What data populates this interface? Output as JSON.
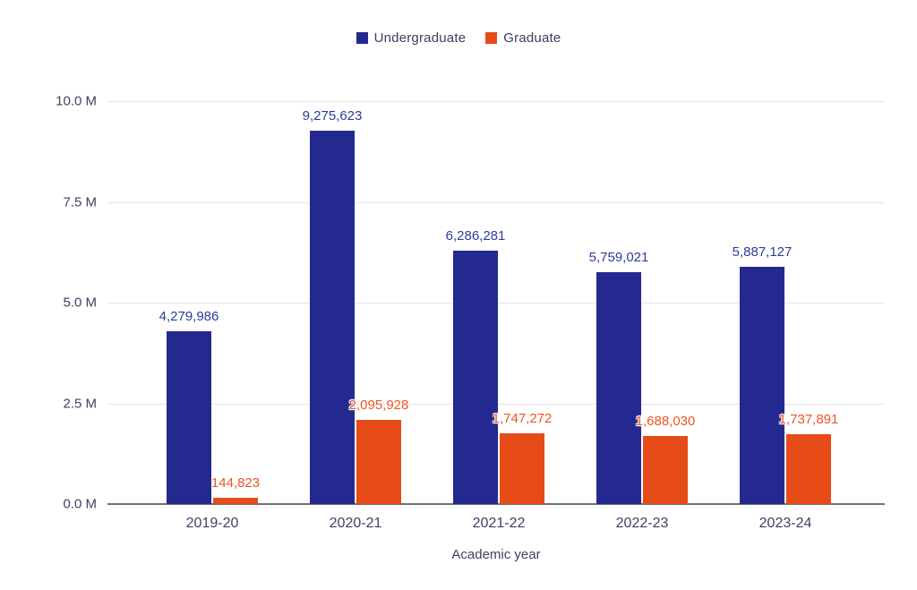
{
  "colors": {
    "background": "#ffffff",
    "undergraduate_bar": "#23298f",
    "graduate_bar": "#e74b17",
    "undergraduate_label": "#2f3a9d",
    "graduate_label": "#ef5322",
    "axis_text": "#3f4161",
    "legend_text": "#3d3f60",
    "gridline": "#e4e5e9",
    "zeroline": "#6f7079"
  },
  "chart_data": {
    "type": "bar",
    "title": "",
    "xlabel": "Academic year",
    "ylabel": "",
    "categories": [
      "2019-20",
      "2020-21",
      "2021-22",
      "2022-23",
      "2023-24"
    ],
    "series": [
      {
        "name": "Undergraduate",
        "color": "#23298f",
        "label_color": "#2f3a9d",
        "values": [
          4279986,
          9275623,
          6286281,
          5759021,
          5887127
        ],
        "labels": [
          "4,279,986",
          "9,275,623",
          "6,286,281",
          "5,759,021",
          "5,887,127"
        ]
      },
      {
        "name": "Graduate",
        "color": "#e74b17",
        "label_color": "#ef5322",
        "values": [
          144823,
          2095928,
          1747272,
          1688030,
          1737891
        ],
        "labels": [
          "144,823",
          "2,095,928",
          "1,747,272",
          "1,688,030",
          "1,737,891"
        ]
      }
    ],
    "ylim": [
      0,
      10000000
    ],
    "yticks": [
      {
        "value": 0,
        "label": "0.0 M"
      },
      {
        "value": 2500000,
        "label": "2.5 M"
      },
      {
        "value": 5000000,
        "label": "5.0 M"
      },
      {
        "value": 7500000,
        "label": "7.5 M"
      },
      {
        "value": 10000000,
        "label": "10.0 M"
      }
    ],
    "grid": true,
    "legend_position": "top-center"
  }
}
